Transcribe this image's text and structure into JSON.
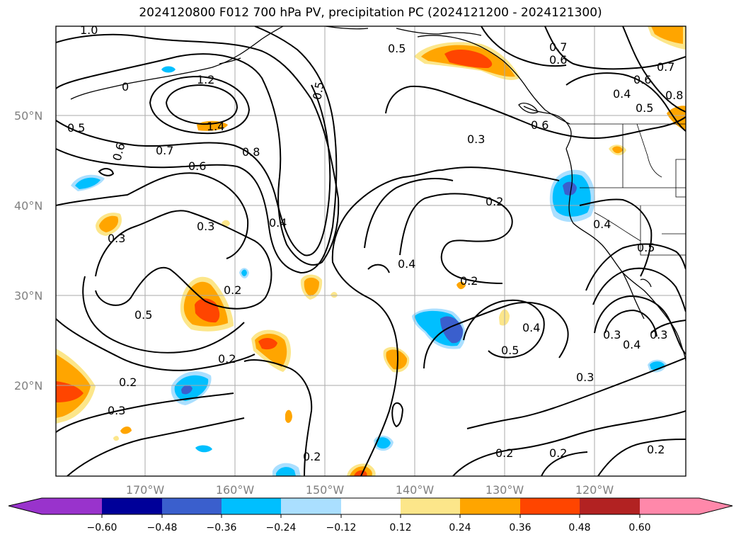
{
  "title": "2024120800 F012 700 hPa PV, precipitation PC (2024121200 - 2024121300)",
  "map": {
    "lat_labels": [
      "50°N",
      "40°N",
      "30°N",
      "20°N"
    ],
    "lon_labels": [
      "170°W",
      "160°W",
      "150°W",
      "140°W",
      "130°W",
      "120°W"
    ],
    "contour_labels": [
      "1.0",
      "1.2",
      "1.4",
      "0.5",
      "0.6",
      "0.7",
      "0.6",
      "0.8",
      "0.5",
      "0.5",
      "0.7",
      "0.6",
      "0.4",
      "0.5",
      "0.7",
      "0.6",
      "0.8",
      "0.3",
      "0.2",
      "0.3",
      "0.4",
      "0.2",
      "0.4",
      "0.2",
      "0.3",
      "0.5",
      "0.2",
      "0.2",
      "0.3",
      "0.2",
      "0.4",
      "0.5",
      "0.3",
      "0.4",
      "0.3",
      "0.3",
      "0.2",
      "0.2",
      "0.2",
      "0.4",
      "0.5",
      "0.6",
      "0"
    ],
    "colors": {
      "neg_purple": "#9933cc",
      "neg_navy": "#000099",
      "neg_blue": "#3a5fcd",
      "neg_sky": "#00bfff",
      "neg_light": "#aadfff",
      "pos_yellow": "#fce68a",
      "pos_orange": "#ffa500",
      "pos_redorange": "#ff4500",
      "pos_firebrick": "#b22222",
      "pos_pink": "#ff88aa"
    }
  },
  "colorbar": {
    "ticks": [
      "−0.60",
      "−0.48",
      "−0.36",
      "−0.24",
      "−0.12",
      "0.12",
      "0.24",
      "0.36",
      "0.48",
      "0.60"
    ]
  }
}
